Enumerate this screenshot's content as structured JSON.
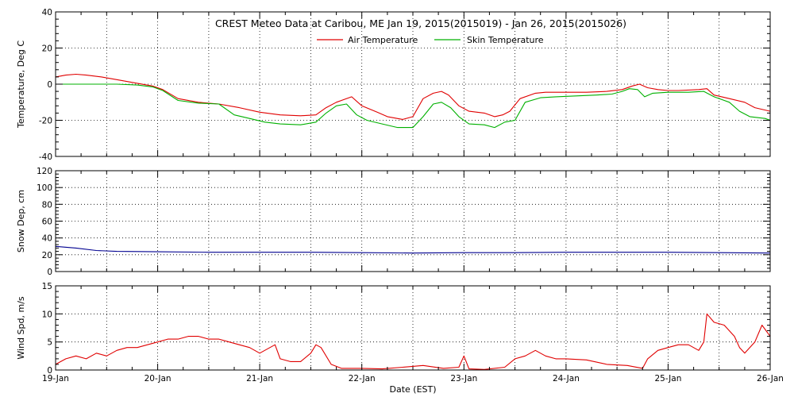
{
  "chart_data": {
    "type": "line",
    "title": "CREST Meteo Data at Caribou, ME   Jan 19, 2015(2015019) - Jan 26, 2015(2015026)",
    "xlabel": "Date (EST)",
    "x_ticks": [
      "19-Jan",
      "20-Jan",
      "21-Jan",
      "22-Jan",
      "23-Jan",
      "24-Jan",
      "25-Jan",
      "26-Jan"
    ],
    "xlim": [
      0,
      7
    ],
    "colors": {
      "air": "#e00000",
      "skin": "#00b000",
      "snow": "#000090",
      "wind": "#e00000"
    },
    "panels": [
      {
        "ylabel": "Temperature, Deg C",
        "ylim": [
          -40,
          40
        ],
        "yticks": [
          -40,
          -20,
          0,
          20,
          40
        ],
        "legend": {
          "position": "top-center",
          "entries": [
            "Air Temperature",
            "Skin Temperature"
          ]
        },
        "series": [
          {
            "name": "Air Temperature",
            "color": "#e00000",
            "points": [
              [
                0,
                4
              ],
              [
                0.1,
                5
              ],
              [
                0.2,
                5.5
              ],
              [
                0.3,
                5
              ],
              [
                0.45,
                4
              ],
              [
                0.6,
                2.5
              ],
              [
                0.8,
                0.5
              ],
              [
                0.95,
                -1
              ],
              [
                1.05,
                -3
              ],
              [
                1.2,
                -8
              ],
              [
                1.4,
                -10
              ],
              [
                1.6,
                -11
              ],
              [
                1.8,
                -13
              ],
              [
                2.0,
                -15.5
              ],
              [
                2.2,
                -17
              ],
              [
                2.4,
                -17.5
              ],
              [
                2.55,
                -17
              ],
              [
                2.65,
                -13
              ],
              [
                2.75,
                -10
              ],
              [
                2.9,
                -7
              ],
              [
                3.0,
                -12
              ],
              [
                3.15,
                -15.5
              ],
              [
                3.25,
                -18
              ],
              [
                3.4,
                -19.5
              ],
              [
                3.5,
                -18
              ],
              [
                3.6,
                -8
              ],
              [
                3.7,
                -5
              ],
              [
                3.78,
                -4
              ],
              [
                3.85,
                -6
              ],
              [
                3.95,
                -12
              ],
              [
                4.05,
                -15
              ],
              [
                4.2,
                -16
              ],
              [
                4.3,
                -18
              ],
              [
                4.38,
                -17
              ],
              [
                4.45,
                -15
              ],
              [
                4.55,
                -8
              ],
              [
                4.7,
                -5
              ],
              [
                4.8,
                -4.5
              ],
              [
                5.0,
                -4.5
              ],
              [
                5.2,
                -4.5
              ],
              [
                5.4,
                -4
              ],
              [
                5.55,
                -3
              ],
              [
                5.65,
                -1
              ],
              [
                5.72,
                0
              ],
              [
                5.8,
                -2
              ],
              [
                5.9,
                -3
              ],
              [
                6.0,
                -3.5
              ],
              [
                6.1,
                -3.5
              ],
              [
                6.3,
                -3
              ],
              [
                6.38,
                -2.5
              ],
              [
                6.45,
                -6
              ],
              [
                6.6,
                -8
              ],
              [
                6.75,
                -10
              ],
              [
                6.85,
                -13
              ],
              [
                7.0,
                -15
              ]
            ]
          },
          {
            "name": "Skin Temperature",
            "color": "#00b000",
            "points": [
              [
                0,
                0
              ],
              [
                0.2,
                0
              ],
              [
                0.4,
                0
              ],
              [
                0.6,
                0
              ],
              [
                0.8,
                -0.5
              ],
              [
                0.95,
                -1.5
              ],
              [
                1.05,
                -3.5
              ],
              [
                1.2,
                -9
              ],
              [
                1.4,
                -10.5
              ],
              [
                1.6,
                -11
              ],
              [
                1.75,
                -17
              ],
              [
                1.9,
                -19
              ],
              [
                2.05,
                -21
              ],
              [
                2.2,
                -22
              ],
              [
                2.4,
                -22.5
              ],
              [
                2.55,
                -21
              ],
              [
                2.65,
                -16
              ],
              [
                2.75,
                -12
              ],
              [
                2.85,
                -11
              ],
              [
                2.95,
                -17
              ],
              [
                3.05,
                -20
              ],
              [
                3.2,
                -22
              ],
              [
                3.35,
                -24
              ],
              [
                3.5,
                -24
              ],
              [
                3.6,
                -18
              ],
              [
                3.7,
                -11
              ],
              [
                3.78,
                -10
              ],
              [
                3.87,
                -13
              ],
              [
                3.95,
                -18
              ],
              [
                4.05,
                -22
              ],
              [
                4.2,
                -22.5
              ],
              [
                4.3,
                -24
              ],
              [
                4.4,
                -21
              ],
              [
                4.5,
                -20
              ],
              [
                4.6,
                -10
              ],
              [
                4.75,
                -7.5
              ],
              [
                4.9,
                -7
              ],
              [
                5.1,
                -6.5
              ],
              [
                5.3,
                -6
              ],
              [
                5.45,
                -5.5
              ],
              [
                5.55,
                -4
              ],
              [
                5.62,
                -2.5
              ],
              [
                5.7,
                -3
              ],
              [
                5.77,
                -7
              ],
              [
                5.85,
                -5
              ],
              [
                6.0,
                -4.5
              ],
              [
                6.2,
                -4.5
              ],
              [
                6.35,
                -4
              ],
              [
                6.45,
                -7
              ],
              [
                6.6,
                -10
              ],
              [
                6.7,
                -15
              ],
              [
                6.8,
                -18
              ],
              [
                6.95,
                -19
              ],
              [
                7.0,
                -20
              ]
            ]
          }
        ]
      },
      {
        "ylabel": "Snow Dep, cm",
        "ylim": [
          0,
          120
        ],
        "yticks": [
          0,
          20,
          40,
          60,
          80,
          100,
          120
        ],
        "series": [
          {
            "name": "",
            "color": "#000090",
            "points": [
              [
                0,
                30
              ],
              [
                0.2,
                28
              ],
              [
                0.4,
                25
              ],
              [
                0.6,
                24
              ],
              [
                1.0,
                23.5
              ],
              [
                1.5,
                23
              ],
              [
                2.0,
                23
              ],
              [
                2.5,
                23
              ],
              [
                3.0,
                22.5
              ],
              [
                3.5,
                22
              ],
              [
                4.0,
                22.5
              ],
              [
                4.5,
                22.5
              ],
              [
                5.0,
                23
              ],
              [
                5.5,
                23
              ],
              [
                6.0,
                23
              ],
              [
                6.5,
                22.5
              ],
              [
                7.0,
                22
              ]
            ]
          }
        ]
      },
      {
        "ylabel": "Wind Spd, m/s",
        "ylim": [
          0,
          15
        ],
        "yticks": [
          0,
          5,
          10,
          15
        ],
        "series": [
          {
            "name": "",
            "color": "#e00000",
            "points": [
              [
                0,
                1
              ],
              [
                0.1,
                2
              ],
              [
                0.2,
                2.5
              ],
              [
                0.3,
                2
              ],
              [
                0.4,
                3
              ],
              [
                0.5,
                2.5
              ],
              [
                0.6,
                3.5
              ],
              [
                0.7,
                4
              ],
              [
                0.8,
                4
              ],
              [
                0.9,
                4.5
              ],
              [
                1.0,
                5
              ],
              [
                1.1,
                5.5
              ],
              [
                1.2,
                5.5
              ],
              [
                1.3,
                6
              ],
              [
                1.4,
                6
              ],
              [
                1.5,
                5.5
              ],
              [
                1.6,
                5.5
              ],
              [
                1.7,
                5
              ],
              [
                1.8,
                4.5
              ],
              [
                1.9,
                4
              ],
              [
                2.0,
                3
              ],
              [
                2.1,
                4
              ],
              [
                2.15,
                4.5
              ],
              [
                2.2,
                2
              ],
              [
                2.3,
                1.5
              ],
              [
                2.4,
                1.5
              ],
              [
                2.5,
                3
              ],
              [
                2.55,
                4.5
              ],
              [
                2.6,
                4
              ],
              [
                2.7,
                1
              ],
              [
                2.8,
                0.3
              ],
              [
                3.0,
                0.3
              ],
              [
                3.2,
                0.2
              ],
              [
                3.4,
                0.5
              ],
              [
                3.6,
                0.8
              ],
              [
                3.8,
                0.3
              ],
              [
                3.95,
                0.5
              ],
              [
                4.0,
                2.5
              ],
              [
                4.05,
                0.2
              ],
              [
                4.2,
                0.1
              ],
              [
                4.4,
                0.5
              ],
              [
                4.5,
                2
              ],
              [
                4.6,
                2.5
              ],
              [
                4.7,
                3.5
              ],
              [
                4.8,
                2.5
              ],
              [
                4.9,
                2
              ],
              [
                5.0,
                2
              ],
              [
                5.2,
                1.8
              ],
              [
                5.4,
                1
              ],
              [
                5.6,
                0.8
              ],
              [
                5.75,
                0.3
              ],
              [
                5.8,
                2
              ],
              [
                5.9,
                3.5
              ],
              [
                6.0,
                4
              ],
              [
                6.1,
                4.5
              ],
              [
                6.2,
                4.5
              ],
              [
                6.3,
                3.5
              ],
              [
                6.35,
                5
              ],
              [
                6.38,
                10
              ],
              [
                6.45,
                8.5
              ],
              [
                6.55,
                8
              ],
              [
                6.65,
                6
              ],
              [
                6.7,
                4
              ],
              [
                6.75,
                3
              ],
              [
                6.85,
                5
              ],
              [
                6.92,
                8
              ],
              [
                7.0,
                6
              ]
            ]
          }
        ]
      }
    ]
  }
}
